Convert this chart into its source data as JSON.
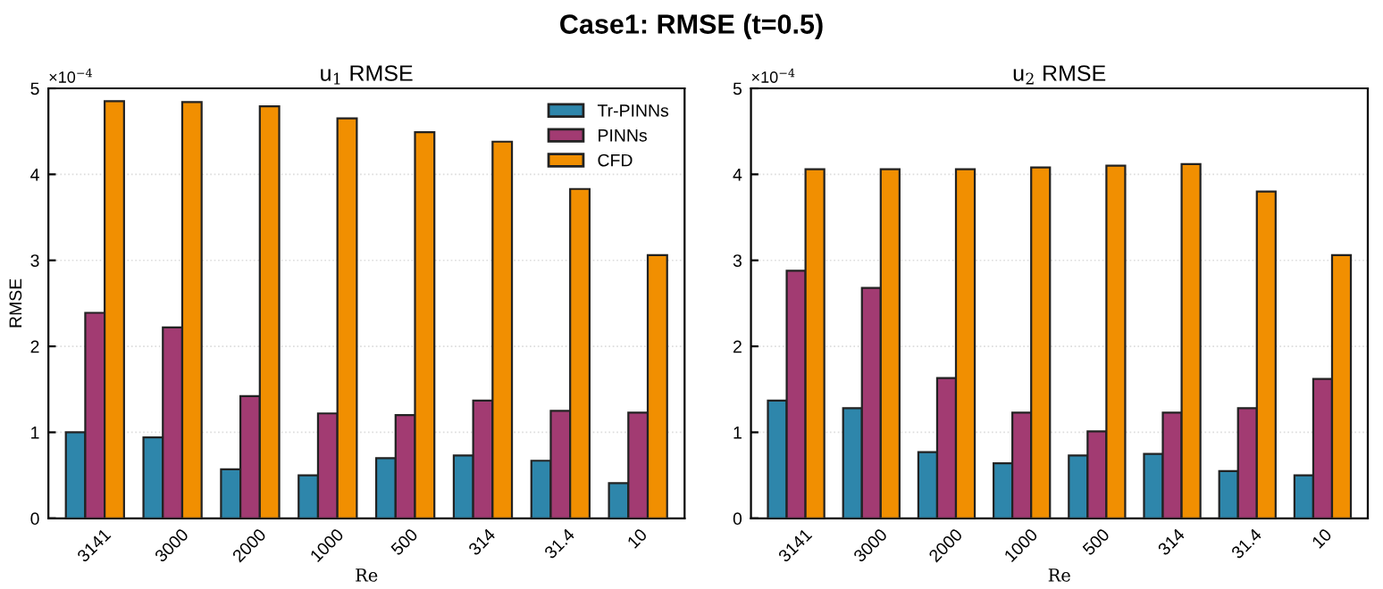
{
  "chart_data": [
    {
      "type": "bar",
      "title": "u$_{1}$ RMSE",
      "xlabel": "Re",
      "ylabel": "RMSE",
      "categories": [
        "3141",
        "3000",
        "2000",
        "1000",
        "500",
        "314",
        "31.4",
        "10"
      ],
      "ylim": [
        0,
        5
      ],
      "yticks": [
        0,
        1,
        2,
        3,
        4,
        5
      ],
      "grid": "y",
      "legend": "top right",
      "annotations": [
        "Case1: RMSE (t=0.5)",
        "×10$^{−4}$"
      ],
      "series": [
        {
          "name": "Tr-PINNs",
          "color": "#2e86ab",
          "values": [
            1.0,
            0.94,
            0.57,
            0.5,
            0.7,
            0.73,
            0.67,
            0.41
          ]
        },
        {
          "name": "PINNs",
          "color": "#a23b72",
          "values": [
            2.39,
            2.22,
            1.42,
            1.22,
            1.2,
            1.37,
            1.25,
            1.23
          ]
        },
        {
          "name": "CFD",
          "color": "#f18f01",
          "values": [
            4.85,
            4.84,
            4.79,
            4.65,
            4.49,
            4.38,
            3.83,
            3.06
          ]
        }
      ]
    },
    {
      "type": "bar",
      "title": "u$_{2}$ RMSE",
      "xlabel": "Re",
      "categories": [
        "3141",
        "3000",
        "2000",
        "1000",
        "500",
        "314",
        "31.4",
        "10"
      ],
      "ylim": [
        0,
        5
      ],
      "yticks": [
        0,
        1,
        2,
        3,
        4,
        5
      ],
      "grid": "y",
      "annotations": [
        "×10$^{−4}$"
      ],
      "series": [
        {
          "color": "#2e86ab",
          "values": [
            1.37,
            1.28,
            0.77,
            0.64,
            0.73,
            0.75,
            0.55,
            0.5
          ]
        },
        {
          "color": "#a23b72",
          "values": [
            2.88,
            2.68,
            1.63,
            1.23,
            1.01,
            1.23,
            1.28,
            1.62
          ]
        },
        {
          "color": "#f18f01",
          "values": [
            4.06,
            4.06,
            4.06,
            4.08,
            4.1,
            4.12,
            3.8,
            3.06
          ]
        }
      ]
    }
  ]
}
